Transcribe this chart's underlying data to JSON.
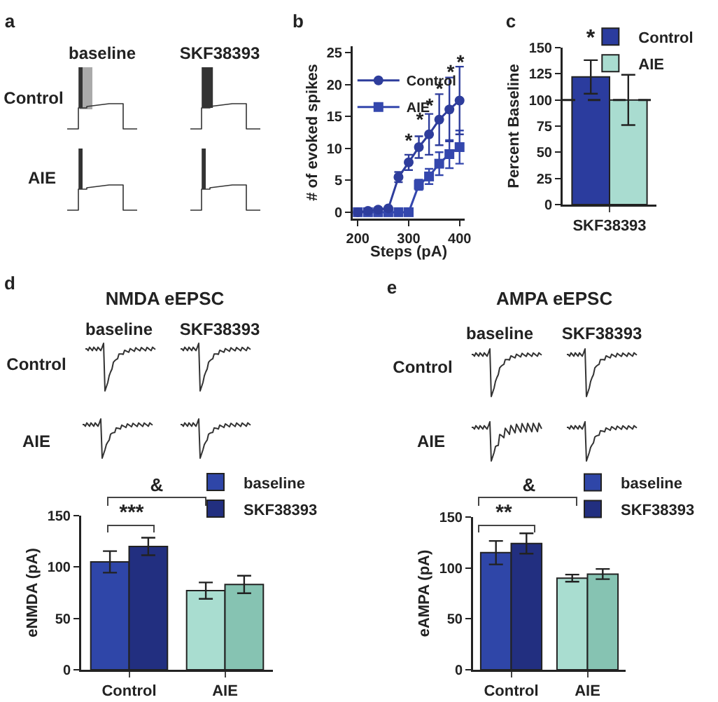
{
  "chart_data": [
    {
      "type": "other",
      "annotations": [
        "a",
        "baseline",
        "SKF38393",
        "Control",
        "AIE"
      ]
    },
    {
      "type": "line",
      "annotations": [
        "b",
        "*",
        "*",
        "*",
        "*",
        "*",
        "*"
      ],
      "xlabel": "Steps (pA)",
      "ylabel": "# of evoked spikes",
      "x": [
        200,
        220,
        240,
        260,
        280,
        300,
        320,
        340,
        360,
        380,
        400
      ],
      "series": [
        {
          "name": "Control",
          "color": "#2e3d9c",
          "marker": "circle",
          "values": [
            0,
            0.2,
            0.4,
            0.6,
            5.5,
            7.8,
            10.2,
            12.2,
            14.5,
            16.1,
            17.5
          ],
          "errors": [
            null,
            null,
            null,
            null,
            0.8,
            1.2,
            1.7,
            3.2,
            4,
            5,
            5.3
          ]
        },
        {
          "name": "AIE",
          "color": "#3447ad",
          "marker": "square",
          "values": [
            0,
            0,
            0,
            0,
            0,
            0,
            4.3,
            5.6,
            7.6,
            9.1,
            10.2
          ],
          "errors": [
            null,
            null,
            null,
            null,
            null,
            null,
            0.8,
            1.2,
            1.8,
            2.2,
            2.6
          ]
        }
      ],
      "xlim": [
        190,
        410
      ],
      "xticks": [
        200,
        300,
        400
      ],
      "ylim": [
        -1,
        26
      ],
      "yticks": [
        0,
        5,
        10,
        15,
        20,
        25
      ],
      "legend": "top left"
    },
    {
      "type": "bar",
      "annotations": [
        "c",
        "*"
      ],
      "ylabel": "Percent Baseline",
      "categories": [
        "SKF38393"
      ],
      "series": [
        {
          "name": "Control",
          "color": "#2b3c9e",
          "values": [
            122
          ],
          "errors": [
            16
          ]
        },
        {
          "name": "AIE",
          "color": "#a9dcd0",
          "values": [
            100
          ],
          "errors": [
            24
          ]
        }
      ],
      "ylim": [
        0,
        150
      ],
      "yticks": [
        0,
        25,
        50,
        75,
        100,
        125,
        150
      ],
      "ref_lines": [
        {
          "axis": "y",
          "value": 100,
          "line_style": "dashed",
          "color": "#222222"
        }
      ],
      "legend": "top right"
    },
    {
      "type": "bar",
      "title": "NMDA eEPSC",
      "ylabel": "eNMDA (pA)",
      "annotations": [
        "d",
        "baseline",
        "SKF38393",
        "Control",
        "AIE",
        "***",
        "&"
      ],
      "categories": [
        "Control",
        "AIE"
      ],
      "series": [
        {
          "name": "baseline",
          "colors": [
            "#2f46a8",
            "#a9ddd0"
          ],
          "values": [
            105,
            77
          ],
          "errors": [
            10.5,
            8
          ]
        },
        {
          "name": "SKF38393",
          "colors": [
            "#222f80",
            "#86c3b2"
          ],
          "values": [
            120,
            83
          ],
          "errors": [
            8.5,
            8.5
          ]
        }
      ],
      "ylim": [
        0,
        150
      ],
      "yticks": [
        0,
        50,
        100,
        150
      ],
      "legend": "top right"
    },
    {
      "type": "bar",
      "title": "AMPA eEPSC",
      "ylabel": "eAMPA (pA)",
      "annotations": [
        "e",
        "baseline",
        "SKF38393",
        "Control",
        "AIE",
        "**",
        "&"
      ],
      "categories": [
        "Control",
        "AIE"
      ],
      "series": [
        {
          "name": "baseline",
          "colors": [
            "#2f46a8",
            "#a9ddd0"
          ],
          "values": [
            115,
            90
          ],
          "errors": [
            11.5,
            3.5
          ]
        },
        {
          "name": "SKF38393",
          "colors": [
            "#222f80",
            "#86c3b2"
          ],
          "values": [
            124,
            94
          ],
          "errors": [
            10,
            5
          ]
        }
      ],
      "ylim": [
        0,
        150
      ],
      "yticks": [
        0,
        50,
        100,
        150
      ],
      "legend": "top right"
    }
  ]
}
